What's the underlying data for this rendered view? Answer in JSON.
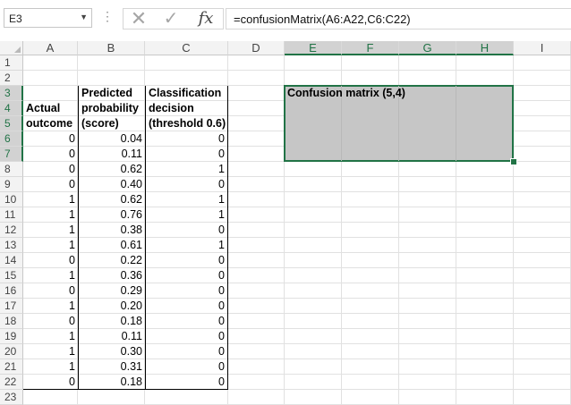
{
  "name_box": {
    "value": "E3"
  },
  "formula_bar": {
    "cancel_glyph": "✕",
    "enter_glyph": "✓",
    "fx_label": "fx",
    "formula": "=confusionMatrix(A6:A22,C6:C22)"
  },
  "columns": [
    "A",
    "B",
    "C",
    "D",
    "E",
    "F",
    "G",
    "H",
    "I"
  ],
  "rows": [
    "1",
    "2",
    "3",
    "4",
    "5",
    "6",
    "7",
    "8",
    "9",
    "10",
    "11",
    "12",
    "13",
    "14",
    "15",
    "16",
    "17",
    "18",
    "19",
    "20",
    "21",
    "22",
    "23"
  ],
  "headers": {
    "a3": "",
    "a4": "Actual",
    "a5": "outcome",
    "b3": "Predicted",
    "b4": "probability",
    "b5": "(score)",
    "c3": "Classification",
    "c4": "decision",
    "c5": "(threshold 0.6)"
  },
  "confusion_label": "Confusion matrix (5,4)",
  "table": [
    [
      "0",
      "0.04",
      "0"
    ],
    [
      "0",
      "0.11",
      "0"
    ],
    [
      "0",
      "0.62",
      "1"
    ],
    [
      "0",
      "0.40",
      "0"
    ],
    [
      "1",
      "0.62",
      "1"
    ],
    [
      "1",
      "0.76",
      "1"
    ],
    [
      "1",
      "0.38",
      "0"
    ],
    [
      "1",
      "0.61",
      "1"
    ],
    [
      "0",
      "0.22",
      "0"
    ],
    [
      "1",
      "0.36",
      "0"
    ],
    [
      "0",
      "0.29",
      "0"
    ],
    [
      "1",
      "0.20",
      "0"
    ],
    [
      "0",
      "0.18",
      "0"
    ],
    [
      "1",
      "0.11",
      "0"
    ],
    [
      "1",
      "0.30",
      "0"
    ],
    [
      "1",
      "0.31",
      "0"
    ],
    [
      "0",
      "0.18",
      "0"
    ]
  ],
  "colors": {
    "selection_green": "#217346",
    "selection_fill": "#c6c6c6"
  }
}
